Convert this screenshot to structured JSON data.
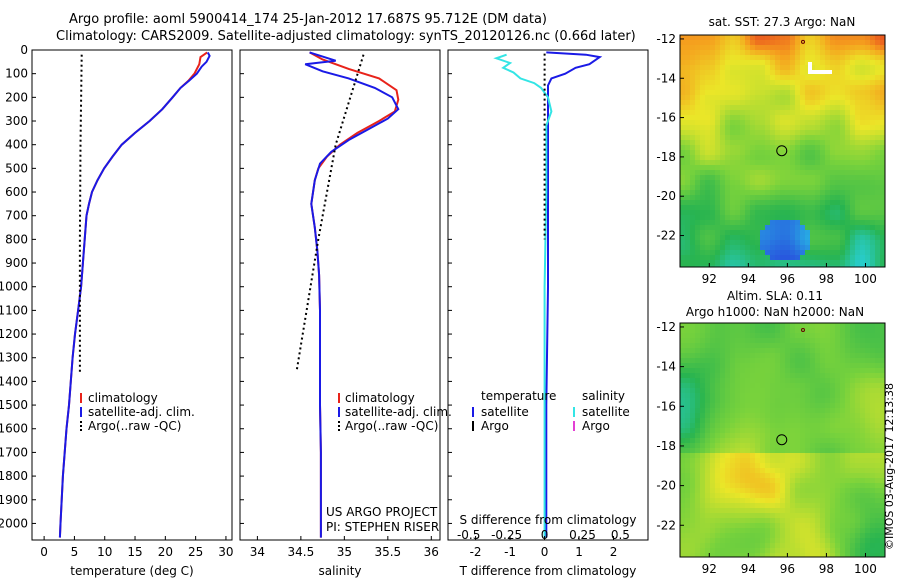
{
  "header": {
    "line1": "Argo profile: aoml 5900414_174 25-Jan-2012 17.687S 95.712E (DM data)",
    "line2": "Climatology: CARS2009. Satellite-adjusted climatology: synTS_20120126.nc (0.66d later)"
  },
  "colors": {
    "red": "#e8231a",
    "blue": "#1a1ae6",
    "cyan": "#33e5e5",
    "magenta": "#e33fd4",
    "black": "#000000"
  },
  "depth_axis": {
    "ticks": [
      "0",
      "100",
      "200",
      "300",
      "400",
      "500",
      "600",
      "700",
      "800",
      "900",
      "1000",
      "1100",
      "1200",
      "1300",
      "1400",
      "1500",
      "1600",
      "1700",
      "1800",
      "1900",
      "2000"
    ]
  },
  "chart_data": [
    {
      "type": "line",
      "id": "temperature",
      "xlabel": "temperature (deg C)",
      "xlim": [
        -2,
        31
      ],
      "ylim": [
        2070,
        0
      ],
      "xticks": [
        "0",
        "5",
        "10",
        "15",
        "20",
        "25",
        "30"
      ],
      "xtick_values": [
        0,
        5,
        10,
        15,
        20,
        25,
        30
      ],
      "legend": [
        "climatology",
        "satellite-adj. clim.",
        "Argo(..raw -QC)"
      ],
      "series": [
        {
          "name": "climatology",
          "color": "red",
          "style": "solid",
          "points": [
            [
              26.9,
              10
            ],
            [
              25.8,
              30
            ],
            [
              25.6,
              60
            ],
            [
              24.8,
              100
            ],
            [
              23.8,
              130
            ],
            [
              22.5,
              160
            ],
            [
              21.2,
              200
            ],
            [
              19.5,
              250
            ],
            [
              17.4,
              300
            ],
            [
              15.0,
              350
            ],
            [
              12.8,
              400
            ],
            [
              11.3,
              450
            ],
            [
              9.9,
              500
            ],
            [
              8.8,
              550
            ],
            [
              7.9,
              600
            ],
            [
              7.4,
              650
            ],
            [
              7.0,
              700
            ],
            [
              6.7,
              800
            ],
            [
              6.4,
              900
            ],
            [
              6.1,
              1000
            ],
            [
              5.6,
              1100
            ],
            [
              5.1,
              1200
            ],
            [
              4.7,
              1300
            ],
            [
              4.4,
              1400
            ],
            [
              4.1,
              1500
            ],
            [
              3.7,
              1600
            ],
            [
              3.4,
              1700
            ],
            [
              3.1,
              1800
            ],
            [
              2.9,
              1900
            ],
            [
              2.7,
              2000
            ],
            [
              2.6,
              2060
            ]
          ]
        },
        {
          "name": "satellite-adj. clim.",
          "color": "blue",
          "style": "solid",
          "points": [
            [
              27.0,
              10
            ],
            [
              27.3,
              25
            ],
            [
              26.8,
              50
            ],
            [
              26.0,
              70
            ],
            [
              25.2,
              100
            ],
            [
              23.9,
              130
            ],
            [
              22.5,
              160
            ],
            [
              21.2,
              200
            ],
            [
              19.5,
              250
            ],
            [
              17.4,
              300
            ],
            [
              15.0,
              350
            ],
            [
              12.8,
              400
            ],
            [
              11.3,
              450
            ],
            [
              9.9,
              500
            ],
            [
              8.8,
              550
            ],
            [
              7.9,
              600
            ],
            [
              7.4,
              650
            ],
            [
              7.0,
              700
            ],
            [
              6.7,
              800
            ],
            [
              6.4,
              900
            ],
            [
              6.1,
              1000
            ],
            [
              5.6,
              1100
            ],
            [
              5.1,
              1200
            ],
            [
              4.7,
              1300
            ],
            [
              4.4,
              1400
            ],
            [
              4.1,
              1500
            ],
            [
              3.7,
              1600
            ],
            [
              3.4,
              1700
            ],
            [
              3.1,
              1800
            ],
            [
              2.9,
              1900
            ],
            [
              2.7,
              2000
            ],
            [
              2.6,
              2060
            ]
          ]
        },
        {
          "name": "Argo(..raw -QC)",
          "color": "black",
          "style": "dotted",
          "points": [
            [
              6.2,
              20
            ],
            [
              6.0,
              400
            ],
            [
              5.9,
              800
            ],
            [
              5.9,
              1360
            ]
          ]
        }
      ]
    },
    {
      "type": "line",
      "id": "salinity",
      "xlabel": "salinity",
      "xlim": [
        33.8,
        36.1
      ],
      "ylim": [
        2070,
        0
      ],
      "xticks": [
        "34",
        "34.5",
        "35",
        "35.5",
        "36"
      ],
      "xtick_values": [
        34,
        34.5,
        35,
        35.5,
        36
      ],
      "legend": [
        "climatology",
        "satellite-adj. clim.",
        "Argo(..raw -QC)"
      ],
      "annotations": [
        "US ARGO PROJECT",
        "PI: STEPHEN RISER"
      ],
      "series": [
        {
          "name": "climatology",
          "color": "red",
          "style": "solid",
          "points": [
            [
              34.6,
              10
            ],
            [
              34.75,
              40
            ],
            [
              35.05,
              80
            ],
            [
              35.4,
              120
            ],
            [
              35.6,
              170
            ],
            [
              35.62,
              210
            ],
            [
              35.58,
              260
            ],
            [
              35.4,
              300
            ],
            [
              35.15,
              350
            ],
            [
              34.95,
              400
            ],
            [
              34.8,
              450
            ],
            [
              34.7,
              500
            ],
            [
              34.66,
              550
            ],
            [
              34.62,
              650
            ],
            [
              34.66,
              750
            ],
            [
              34.69,
              850
            ],
            [
              34.71,
              950
            ],
            [
              34.72,
              1100
            ],
            [
              34.72,
              1300
            ],
            [
              34.72,
              1500
            ],
            [
              34.73,
              1700
            ],
            [
              34.73,
              1900
            ],
            [
              34.73,
              2060
            ]
          ]
        },
        {
          "name": "satellite-adj. clim.",
          "color": "blue",
          "style": "solid",
          "points": [
            [
              34.6,
              10
            ],
            [
              34.9,
              45
            ],
            [
              34.55,
              60
            ],
            [
              34.75,
              90
            ],
            [
              35.05,
              120
            ],
            [
              35.35,
              160
            ],
            [
              35.55,
              200
            ],
            [
              35.62,
              250
            ],
            [
              35.5,
              290
            ],
            [
              35.3,
              330
            ],
            [
              35.05,
              380
            ],
            [
              34.85,
              430
            ],
            [
              34.72,
              480
            ],
            [
              34.66,
              550
            ],
            [
              34.62,
              650
            ],
            [
              34.66,
              750
            ],
            [
              34.69,
              850
            ],
            [
              34.71,
              950
            ],
            [
              34.72,
              1100
            ],
            [
              34.72,
              1300
            ],
            [
              34.72,
              1500
            ],
            [
              34.73,
              1700
            ],
            [
              34.73,
              1900
            ],
            [
              34.73,
              2060
            ]
          ]
        },
        {
          "name": "Argo(..raw -QC)",
          "color": "black",
          "style": "dotted",
          "points": [
            [
              35.22,
              20
            ],
            [
              34.9,
              400
            ],
            [
              34.7,
              800
            ],
            [
              34.45,
              1360
            ]
          ]
        }
      ]
    },
    {
      "type": "line",
      "id": "difference",
      "xlabel": "T difference from climatology",
      "xlabel_top": "S difference from climatology",
      "xlim": [
        -2.8,
        3.0
      ],
      "ylim": [
        2070,
        0
      ],
      "xticks": [
        "-2",
        "-1",
        "0",
        "1",
        "2"
      ],
      "xtick_values": [
        -2,
        -1,
        0,
        1,
        2
      ],
      "sticks": [
        "-0.5",
        "-0.25",
        "0",
        "0.25",
        "0.5"
      ],
      "stick_values": [
        -2.2,
        -1.1,
        0,
        1.1,
        2.2
      ],
      "legend_headers": [
        "temperature",
        "salinity"
      ],
      "legend": [
        "satellite",
        "Argo",
        "satellite",
        "Argo"
      ],
      "series": [
        {
          "name": "satellite",
          "color": "blue",
          "style": "solid",
          "points": [
            [
              0.05,
              10
            ],
            [
              1.2,
              20
            ],
            [
              1.6,
              30
            ],
            [
              1.3,
              60
            ],
            [
              0.9,
              75
            ],
            [
              0.6,
              100
            ],
            [
              0.2,
              120
            ],
            [
              0.1,
              150
            ],
            [
              0.1,
              300
            ],
            [
              0.1,
              600
            ],
            [
              0.1,
              1000
            ],
            [
              0.05,
              1500
            ],
            [
              0.05,
              2060
            ]
          ]
        },
        {
          "name": "satellite",
          "color": "cyan",
          "style": "solid",
          "points": [
            [
              -1.1,
              20
            ],
            [
              -1.4,
              35
            ],
            [
              -1.0,
              55
            ],
            [
              -1.2,
              75
            ],
            [
              -0.9,
              95
            ],
            [
              -0.7,
              120
            ],
            [
              -0.3,
              140
            ],
            [
              -0.1,
              160
            ],
            [
              0.1,
              200
            ],
            [
              0.2,
              260
            ],
            [
              0.05,
              320
            ],
            [
              0.05,
              600
            ],
            [
              0.0,
              1000
            ],
            [
              0.0,
              1500
            ],
            [
              0.0,
              2060
            ]
          ]
        },
        {
          "name": "Argo",
          "color": "black",
          "style": "dotted",
          "points": [
            [
              0,
              15
            ],
            [
              0,
              800
            ]
          ]
        }
      ]
    },
    {
      "type": "heatmap",
      "id": "sst-map",
      "title": "sat. SST: 27.3  Argo: NaN",
      "xticks": [
        "92",
        "94",
        "96",
        "98",
        "100"
      ],
      "xtick_values": [
        92,
        94,
        96,
        98,
        100
      ],
      "yticks": [
        "-12",
        "-14",
        "-16",
        "-18",
        "-20",
        "-22"
      ],
      "ytick_values": [
        -12,
        -14,
        -16,
        -18,
        -20,
        -22
      ],
      "xlim": [
        90.5,
        101
      ],
      "ylim": [
        -23.6,
        -11.8
      ],
      "profile_location": [
        95.712,
        -17.687
      ]
    },
    {
      "type": "heatmap",
      "id": "sla-map",
      "title_line1": "Altim. SLA: 0.11",
      "title_line2": "Argo h1000: NaN  h2000: NaN",
      "xticks": [
        "92",
        "94",
        "96",
        "98",
        "100"
      ],
      "xtick_values": [
        92,
        94,
        96,
        98,
        100
      ],
      "yticks": [
        "-12",
        "-14",
        "-16",
        "-18",
        "-20",
        "-22"
      ],
      "ytick_values": [
        -12,
        -14,
        -16,
        -18,
        -20,
        -22
      ],
      "xlim": [
        90.5,
        101
      ],
      "ylim": [
        -23.6,
        -11.8
      ],
      "profile_location": [
        95.712,
        -17.687
      ]
    }
  ],
  "credit": "©IMOS 03-Aug-2017 12:13:38"
}
